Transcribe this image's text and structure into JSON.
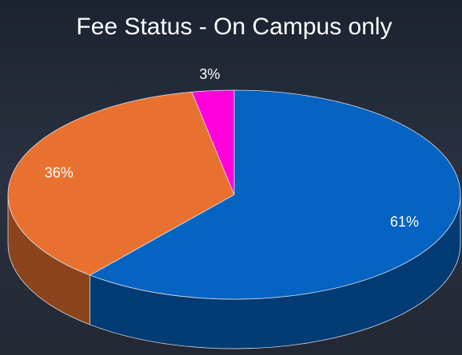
{
  "chart_data": {
    "type": "pie",
    "title": "Fee Status - On Campus only",
    "values": [
      61,
      36,
      3
    ],
    "value_labels": [
      "61%",
      "36%",
      "3%"
    ],
    "colors": [
      "#0563c1",
      "#e9712f",
      "#ff00dd"
    ]
  }
}
